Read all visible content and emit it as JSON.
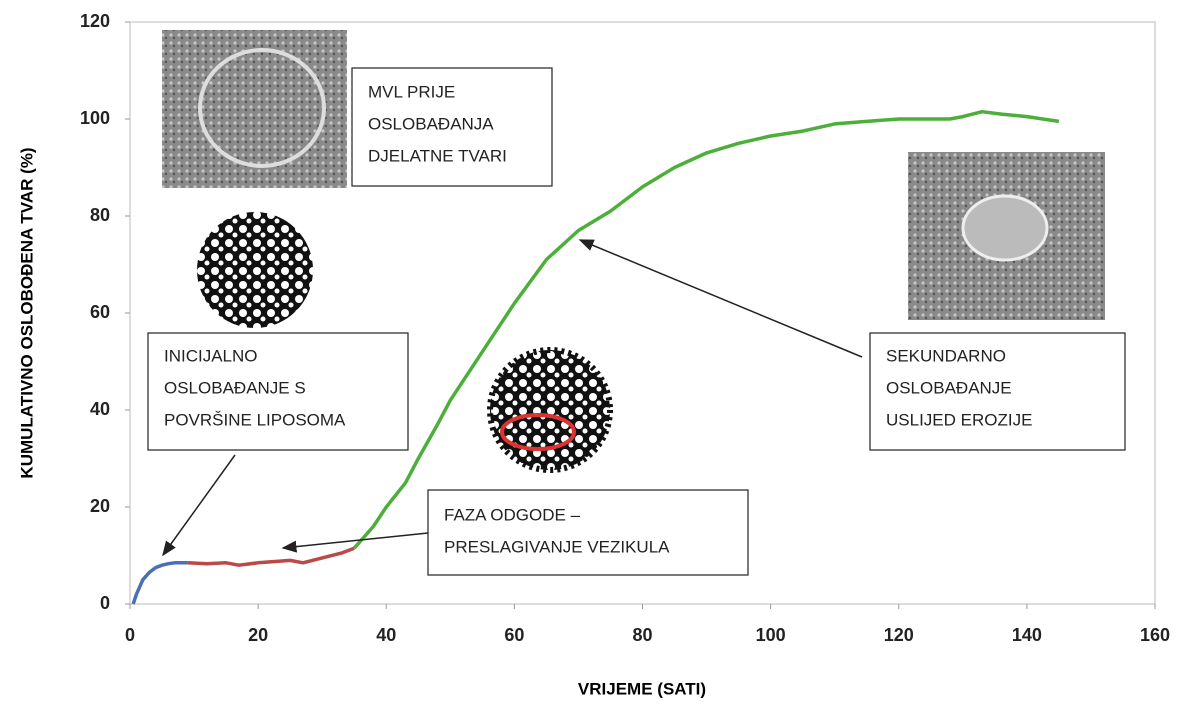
{
  "chart_data": {
    "type": "line",
    "xlabel": "VRIJEME (SATI)",
    "ylabel": "KUMULATIVNO OSLOBOĐENA TVAR (%)",
    "xlim": [
      0,
      160
    ],
    "xticks": [
      0,
      20,
      40,
      60,
      80,
      100,
      120,
      140,
      160
    ],
    "ylim": [
      0,
      120
    ],
    "yticks": [
      0,
      20,
      40,
      60,
      80,
      100,
      120
    ],
    "grid": false,
    "series": [
      {
        "color": "#4a6fb5",
        "x": [
          0.5,
          1,
          2,
          3,
          4,
          5,
          6,
          7,
          8,
          9
        ],
        "values": [
          0,
          2,
          5,
          6.5,
          7.5,
          8,
          8.3,
          8.5,
          8.5,
          8.5
        ]
      },
      {
        "color": "#b94a48",
        "x": [
          9,
          12,
          15,
          17,
          20,
          25,
          27,
          30,
          33,
          35
        ],
        "values": [
          8.5,
          8.3,
          8.5,
          8,
          8.5,
          9,
          8.5,
          9.5,
          10.5,
          11.5
        ]
      },
      {
        "color": "#4caf3a",
        "x": [
          35,
          38,
          40,
          43,
          45,
          48,
          50,
          55,
          60,
          65,
          70,
          75,
          80,
          85,
          90,
          95,
          100,
          105,
          110,
          115,
          120,
          125,
          128,
          130,
          133,
          136,
          140,
          145
        ],
        "values": [
          11.5,
          16,
          20,
          25,
          30,
          37,
          42,
          52,
          62,
          71,
          77,
          81,
          86,
          90,
          93,
          95,
          96.5,
          97.5,
          99,
          99.5,
          100,
          100,
          100,
          100.5,
          101.5,
          101,
          100.5,
          99.5
        ]
      }
    ],
    "annotations": [
      [
        "MVL PRIJE",
        "OSLOBAĐANJA",
        "DJELATNE TVARI"
      ],
      [
        "INICIJALNO",
        "OSLOBAĐANJE S",
        "POVRŠINE LIPOSOMA"
      ],
      [
        "SEKUNDARNO",
        "OSLOBAĐANJE",
        "USLIJED EROZIJE"
      ],
      [
        "FAZA ODGODE –",
        "PRESLAGIVANJE VEZIKULA"
      ]
    ]
  }
}
